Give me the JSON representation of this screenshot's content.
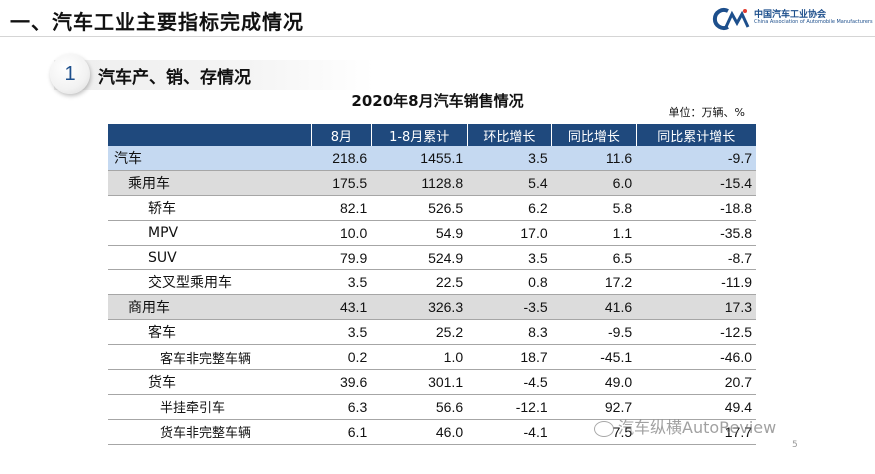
{
  "header": {
    "title": "一、汽车工业主要指标完成情况",
    "logo_cn": "中国汽车工业协会",
    "logo_en": "China Association of Automobile Manufacturers"
  },
  "section": {
    "number": "1",
    "title": "汽车产、销、存情况"
  },
  "table": {
    "title": "2020年8月汽车销售情况",
    "unit": "单位：万辆、%",
    "columns": [
      "8月",
      "1-8月累计",
      "环比增长",
      "同比增长",
      "同比累计增长"
    ],
    "rows": [
      {
        "name": "汽车",
        "values": [
          "218.6",
          "1455.1",
          "3.5",
          "11.6",
          "-9.7"
        ]
      },
      {
        "name": "乘用车",
        "values": [
          "175.5",
          "1128.8",
          "5.4",
          "6.0",
          "-15.4"
        ]
      },
      {
        "name": "轿车",
        "values": [
          "82.1",
          "526.5",
          "6.2",
          "5.8",
          "-18.8"
        ]
      },
      {
        "name": "MPV",
        "values": [
          "10.0",
          "54.9",
          "17.0",
          "1.1",
          "-35.8"
        ]
      },
      {
        "name": "SUV",
        "values": [
          "79.9",
          "524.9",
          "3.5",
          "6.5",
          "-8.7"
        ]
      },
      {
        "name": "交叉型乘用车",
        "values": [
          "3.5",
          "22.5",
          "0.8",
          "17.2",
          "-11.9"
        ]
      },
      {
        "name": "商用车",
        "values": [
          "43.1",
          "326.3",
          "-3.5",
          "41.6",
          "17.3"
        ]
      },
      {
        "name": "客车",
        "values": [
          "3.5",
          "25.2",
          "8.3",
          "-9.5",
          "-12.5"
        ]
      },
      {
        "name": "客车非完整车辆",
        "values": [
          "0.2",
          "1.0",
          "18.7",
          "-45.1",
          "-46.0"
        ]
      },
      {
        "name": "货车",
        "values": [
          "39.6",
          "301.1",
          "-4.5",
          "49.0",
          "20.7"
        ]
      },
      {
        "name": "半挂牵引车",
        "values": [
          "6.3",
          "56.6",
          "-12.1",
          "92.7",
          "49.4"
        ]
      },
      {
        "name": "货车非完整车辆",
        "values": [
          "6.1",
          "46.0",
          "-4.1",
          "7.5",
          "17.7"
        ]
      }
    ]
  },
  "watermark": "汽车纵横AutoReview",
  "page_number": "5"
}
